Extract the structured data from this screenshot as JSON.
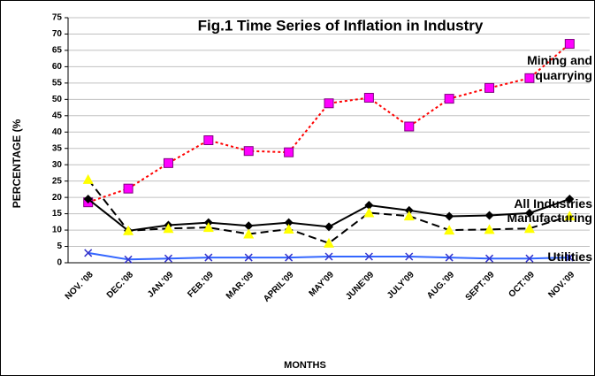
{
  "chart_data": {
    "type": "line",
    "title": "Fig.1 Time Series of Inflation in Industry",
    "x_label": "MONTHS",
    "y_label": "PERCENTAGE (%",
    "categories": [
      "NOV. '08",
      "DEC.'08",
      "JAN.'09",
      "FEB.'09",
      "MAR.'09",
      "APRIL'09",
      "MAY'09",
      "JUNE'09",
      "JULY'09",
      "AUG.'09",
      "SEPT.'09",
      "OCT.'09",
      "NOV.'09"
    ],
    "series": [
      {
        "name": "Mining and quarrying",
        "color": "#ff0000",
        "marker_color": "#ff00ff",
        "marker": "square",
        "dash": "dotted",
        "values": [
          18.5,
          22.7,
          30.5,
          37.5,
          34.2,
          33.8,
          48.8,
          50.5,
          41.7,
          50.2,
          53.5,
          56.5,
          67
        ]
      },
      {
        "name": "All Industries",
        "color": "#000000",
        "marker_color": "#000000",
        "marker": "diamond",
        "dash": "solid",
        "values": [
          19.5,
          9.8,
          11.5,
          12.3,
          11.3,
          12.3,
          11,
          17.6,
          16,
          14.2,
          14.5,
          15.2,
          19.5
        ]
      },
      {
        "name": "Manufacturing",
        "color": "#000000",
        "marker_color": "#ffff00",
        "marker": "triangle",
        "dash": "dashed",
        "values": [
          25.5,
          9.8,
          10.5,
          10.8,
          8.8,
          10.3,
          6,
          15.3,
          14.3,
          10,
          10.2,
          10.5,
          14.3
        ]
      },
      {
        "name": "Utilities",
        "color": "#3366ff",
        "marker_color": "#3333cc",
        "marker": "x",
        "dash": "solid",
        "values": [
          3,
          1,
          1.3,
          1.6,
          1.6,
          1.6,
          1.9,
          1.9,
          1.9,
          1.6,
          1.3,
          1.3,
          1.6
        ]
      }
    ],
    "ylim": [
      0,
      75
    ],
    "yticks": [
      0,
      5,
      10,
      15,
      20,
      25,
      30,
      35,
      40,
      45,
      50,
      55,
      60,
      65,
      70,
      75
    ],
    "grid": true
  }
}
